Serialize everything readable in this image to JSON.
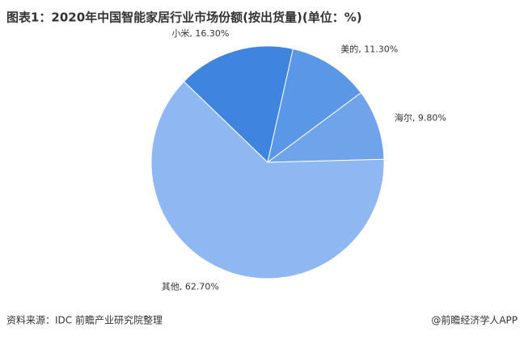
{
  "chart_data": {
    "type": "pie",
    "title": "图表1：2020年中国智能家居行业市场份额(按出货量)(单位：%)",
    "categories": [
      "小米",
      "美的",
      "海尔",
      "其他"
    ],
    "values": [
      16.3,
      11.3,
      9.8,
      62.7
    ],
    "value_labels": [
      "小米, 16.30%",
      "美的, 11.30%",
      "海尔, 9.80%",
      "其他, 62.70%"
    ],
    "colors": [
      "#3f85e0",
      "#5a97e6",
      "#6fa3ea",
      "#8fb8f2"
    ],
    "source": "资料来源：IDC 前瞻产业研究院整理",
    "footer": "@前瞻经济学人APP"
  }
}
